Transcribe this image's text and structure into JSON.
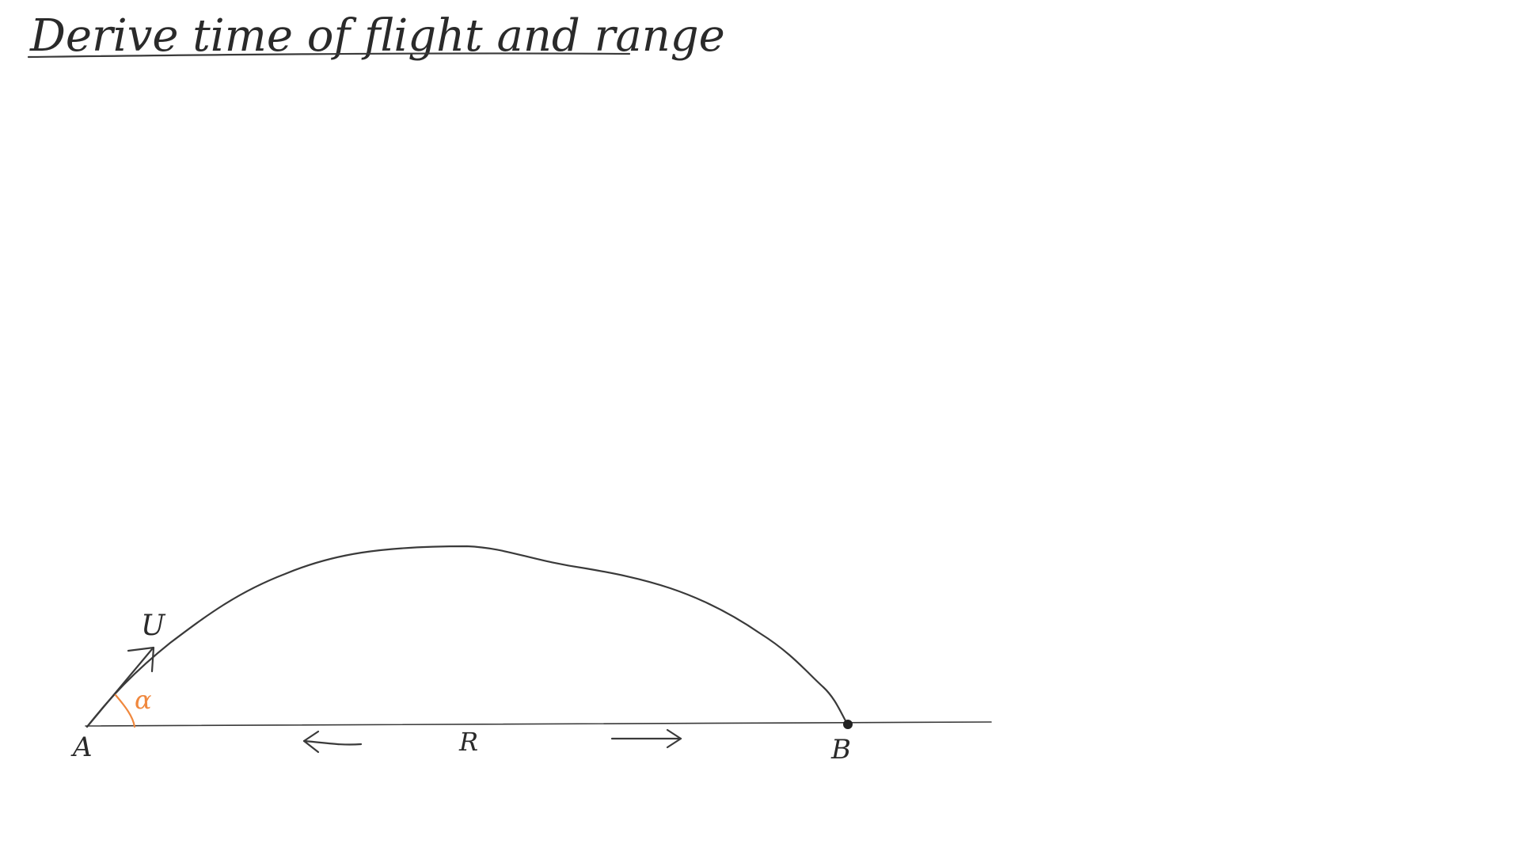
{
  "title": "Derive time of flight and range",
  "labels": {
    "launch_point": "A",
    "landing_point": "B",
    "velocity": "U",
    "angle": "α",
    "range": "R"
  },
  "colors": {
    "ink": "#3a3a3a",
    "angle_accent": "#f0883e",
    "background": "#ffffff"
  }
}
